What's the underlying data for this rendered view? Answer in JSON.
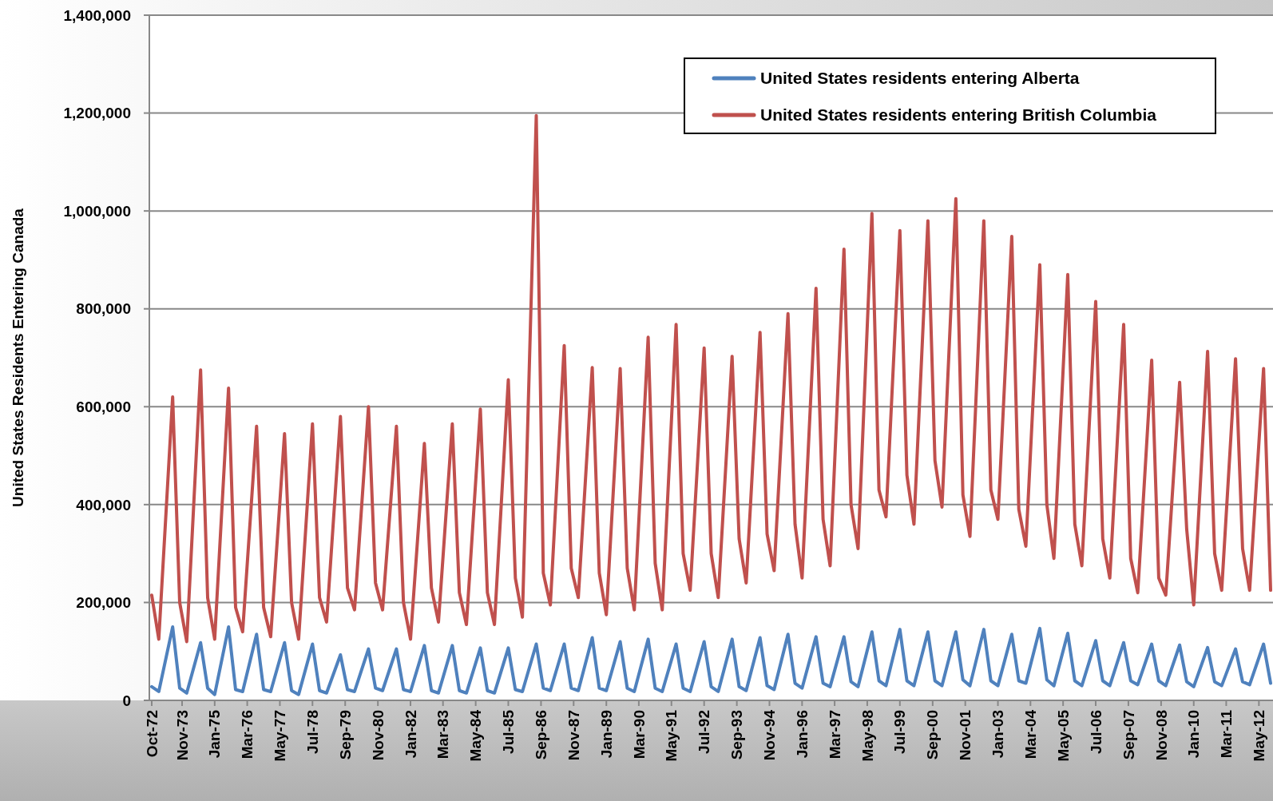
{
  "chart_data": {
    "type": "line",
    "ylabel": "United States Residents Entering Canada",
    "x": [
      "1972-10",
      "1973-01",
      "1973-07",
      "1973-10",
      "1974-01",
      "1974-07",
      "1974-10",
      "1975-01",
      "1975-07",
      "1975-10",
      "1976-01",
      "1976-07",
      "1976-10",
      "1977-01",
      "1977-07",
      "1977-10",
      "1978-01",
      "1978-07",
      "1978-10",
      "1979-01",
      "1979-07",
      "1979-10",
      "1980-01",
      "1980-07",
      "1980-10",
      "1981-01",
      "1981-07",
      "1981-10",
      "1982-01",
      "1982-07",
      "1982-10",
      "1983-01",
      "1983-07",
      "1983-10",
      "1984-01",
      "1984-07",
      "1984-10",
      "1985-01",
      "1985-07",
      "1985-10",
      "1986-01",
      "1986-07",
      "1986-10",
      "1987-01",
      "1987-07",
      "1987-10",
      "1988-01",
      "1988-07",
      "1988-10",
      "1989-01",
      "1989-07",
      "1989-10",
      "1990-01",
      "1990-07",
      "1990-10",
      "1991-01",
      "1991-07",
      "1991-10",
      "1992-01",
      "1992-07",
      "1992-10",
      "1993-01",
      "1993-07",
      "1993-10",
      "1994-01",
      "1994-07",
      "1994-10",
      "1995-01",
      "1995-07",
      "1995-10",
      "1996-01",
      "1996-07",
      "1996-10",
      "1997-01",
      "1997-07",
      "1997-10",
      "1998-01",
      "1998-07",
      "1998-10",
      "1999-01",
      "1999-07",
      "1999-10",
      "2000-01",
      "2000-07",
      "2000-10",
      "2001-01",
      "2001-07",
      "2001-10",
      "2002-01",
      "2002-07",
      "2002-10",
      "2003-01",
      "2003-07",
      "2003-10",
      "2004-01",
      "2004-07",
      "2004-10",
      "2005-01",
      "2005-07",
      "2005-10",
      "2006-01",
      "2006-07",
      "2006-10",
      "2007-01",
      "2007-07",
      "2007-10",
      "2008-01",
      "2008-07",
      "2008-10",
      "2009-01",
      "2009-07",
      "2009-10",
      "2010-01",
      "2010-07",
      "2010-10",
      "2011-01",
      "2011-07",
      "2011-10",
      "2012-01",
      "2012-07",
      "2012-10"
    ],
    "series": [
      {
        "name": "United States residents entering Alberta",
        "color": "#4f81bd",
        "values": [
          28000,
          18000,
          150000,
          25000,
          15000,
          118000,
          25000,
          12000,
          150000,
          22000,
          18000,
          135000,
          22000,
          18000,
          118000,
          20000,
          12000,
          115000,
          20000,
          15000,
          93000,
          22000,
          18000,
          105000,
          25000,
          20000,
          105000,
          22000,
          18000,
          112000,
          20000,
          15000,
          112000,
          20000,
          15000,
          107000,
          20000,
          15000,
          107000,
          22000,
          18000,
          115000,
          25000,
          20000,
          115000,
          25000,
          20000,
          128000,
          25000,
          20000,
          120000,
          25000,
          18000,
          125000,
          25000,
          18000,
          115000,
          25000,
          18000,
          120000,
          28000,
          18000,
          125000,
          28000,
          20000,
          128000,
          30000,
          22000,
          135000,
          35000,
          25000,
          130000,
          35000,
          28000,
          130000,
          38000,
          28000,
          140000,
          40000,
          30000,
          145000,
          40000,
          30000,
          140000,
          40000,
          30000,
          140000,
          42000,
          30000,
          145000,
          40000,
          30000,
          135000,
          40000,
          35000,
          147000,
          42000,
          30000,
          137000,
          40000,
          30000,
          122000,
          40000,
          30000,
          118000,
          40000,
          32000,
          115000,
          40000,
          30000,
          113000,
          38000,
          28000,
          108000,
          38000,
          30000,
          105000,
          38000,
          32000,
          115000,
          35000
        ]
      },
      {
        "name": "United States residents entering British Columbia",
        "color": "#c0504d",
        "values": [
          215000,
          125000,
          620000,
          200000,
          120000,
          675000,
          210000,
          125000,
          638000,
          190000,
          140000,
          560000,
          190000,
          130000,
          545000,
          200000,
          125000,
          565000,
          210000,
          160000,
          580000,
          230000,
          185000,
          600000,
          240000,
          185000,
          560000,
          200000,
          125000,
          525000,
          230000,
          160000,
          565000,
          220000,
          155000,
          595000,
          220000,
          155000,
          655000,
          250000,
          170000,
          1195000,
          260000,
          195000,
          725000,
          270000,
          210000,
          680000,
          260000,
          175000,
          678000,
          270000,
          185000,
          742000,
          280000,
          185000,
          768000,
          300000,
          225000,
          720000,
          300000,
          210000,
          703000,
          330000,
          240000,
          752000,
          340000,
          265000,
          790000,
          360000,
          250000,
          842000,
          370000,
          275000,
          922000,
          400000,
          310000,
          995000,
          430000,
          375000,
          960000,
          460000,
          360000,
          980000,
          490000,
          395000,
          1025000,
          420000,
          335000,
          980000,
          430000,
          370000,
          948000,
          390000,
          315000,
          890000,
          400000,
          290000,
          870000,
          360000,
          275000,
          815000,
          330000,
          250000,
          768000,
          290000,
          220000,
          695000,
          250000,
          215000,
          650000,
          350000,
          195000,
          713000,
          300000,
          225000,
          698000,
          310000,
          225000,
          678000,
          225000
        ]
      }
    ],
    "xlim": [
      "1972-10",
      "2012-11"
    ],
    "xticks": [
      {
        "value": "1972-10",
        "label": "Oct-72"
      },
      {
        "value": "1973-11",
        "label": "Nov-73"
      },
      {
        "value": "1975-01",
        "label": "Jan-75"
      },
      {
        "value": "1976-03",
        "label": "Mar-76"
      },
      {
        "value": "1977-05",
        "label": "May-77"
      },
      {
        "value": "1978-07",
        "label": "Jul-78"
      },
      {
        "value": "1979-09",
        "label": "Sep-79"
      },
      {
        "value": "1980-11",
        "label": "Nov-80"
      },
      {
        "value": "1982-01",
        "label": "Jan-82"
      },
      {
        "value": "1983-03",
        "label": "Mar-83"
      },
      {
        "value": "1984-05",
        "label": "May-84"
      },
      {
        "value": "1985-07",
        "label": "Jul-85"
      },
      {
        "value": "1986-09",
        "label": "Sep-86"
      },
      {
        "value": "1987-11",
        "label": "Nov-87"
      },
      {
        "value": "1989-01",
        "label": "Jan-89"
      },
      {
        "value": "1990-03",
        "label": "Mar-90"
      },
      {
        "value": "1991-05",
        "label": "May-91"
      },
      {
        "value": "1992-07",
        "label": "Jul-92"
      },
      {
        "value": "1993-09",
        "label": "Sep-93"
      },
      {
        "value": "1994-11",
        "label": "Nov-94"
      },
      {
        "value": "1996-01",
        "label": "Jan-96"
      },
      {
        "value": "1997-03",
        "label": "Mar-97"
      },
      {
        "value": "1998-05",
        "label": "May-98"
      },
      {
        "value": "1999-07",
        "label": "Jul-99"
      },
      {
        "value": "2000-09",
        "label": "Sep-00"
      },
      {
        "value": "2001-11",
        "label": "Nov-01"
      },
      {
        "value": "2003-01",
        "label": "Jan-03"
      },
      {
        "value": "2004-03",
        "label": "Mar-04"
      },
      {
        "value": "2005-05",
        "label": "May-05"
      },
      {
        "value": "2006-07",
        "label": "Jul-06"
      },
      {
        "value": "2007-09",
        "label": "Sep-07"
      },
      {
        "value": "2008-11",
        "label": "Nov-08"
      },
      {
        "value": "2010-01",
        "label": "Jan-10"
      },
      {
        "value": "2011-03",
        "label": "Mar-11"
      },
      {
        "value": "2012-05",
        "label": "May-12"
      }
    ],
    "ylim": [
      0,
      1400000
    ],
    "yticks": [
      {
        "value": 0,
        "label": "0"
      },
      {
        "value": 200000,
        "label": "200,000"
      },
      {
        "value": 400000,
        "label": "400,000"
      },
      {
        "value": 600000,
        "label": "600,000"
      },
      {
        "value": 800000,
        "label": "800,000"
      },
      {
        "value": 1000000,
        "label": "1,000,000"
      },
      {
        "value": 1200000,
        "label": "1,200,000"
      },
      {
        "value": 1400000,
        "label": "1,400,000"
      }
    ],
    "grid": "y",
    "legend": "top right",
    "marker": "none",
    "line_style": "solid"
  }
}
